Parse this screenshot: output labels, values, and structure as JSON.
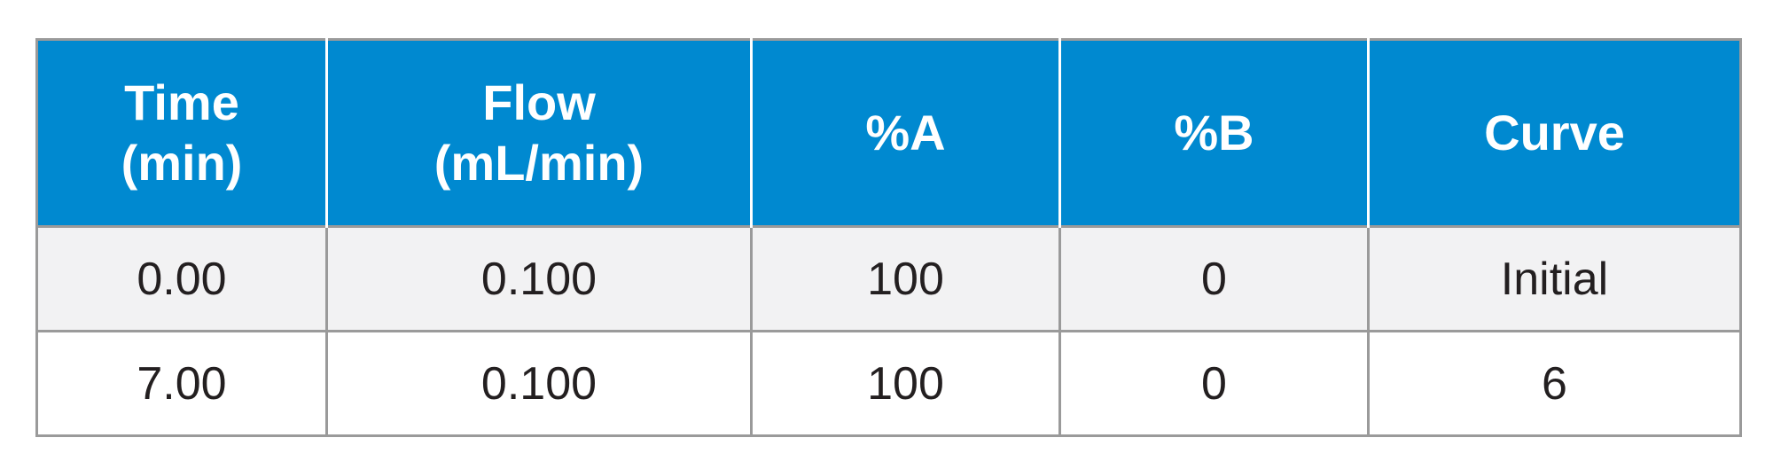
{
  "table": {
    "header": [
      [
        "Time",
        "(min)"
      ],
      [
        "Flow",
        "(mL/min)"
      ],
      [
        "%A"
      ],
      [
        "%B"
      ],
      [
        "Curve"
      ]
    ],
    "rows": [
      [
        "0.00",
        "0.100",
        "100",
        "0",
        "Initial"
      ],
      [
        "7.00",
        "0.100",
        "100",
        "0",
        "6"
      ]
    ]
  }
}
